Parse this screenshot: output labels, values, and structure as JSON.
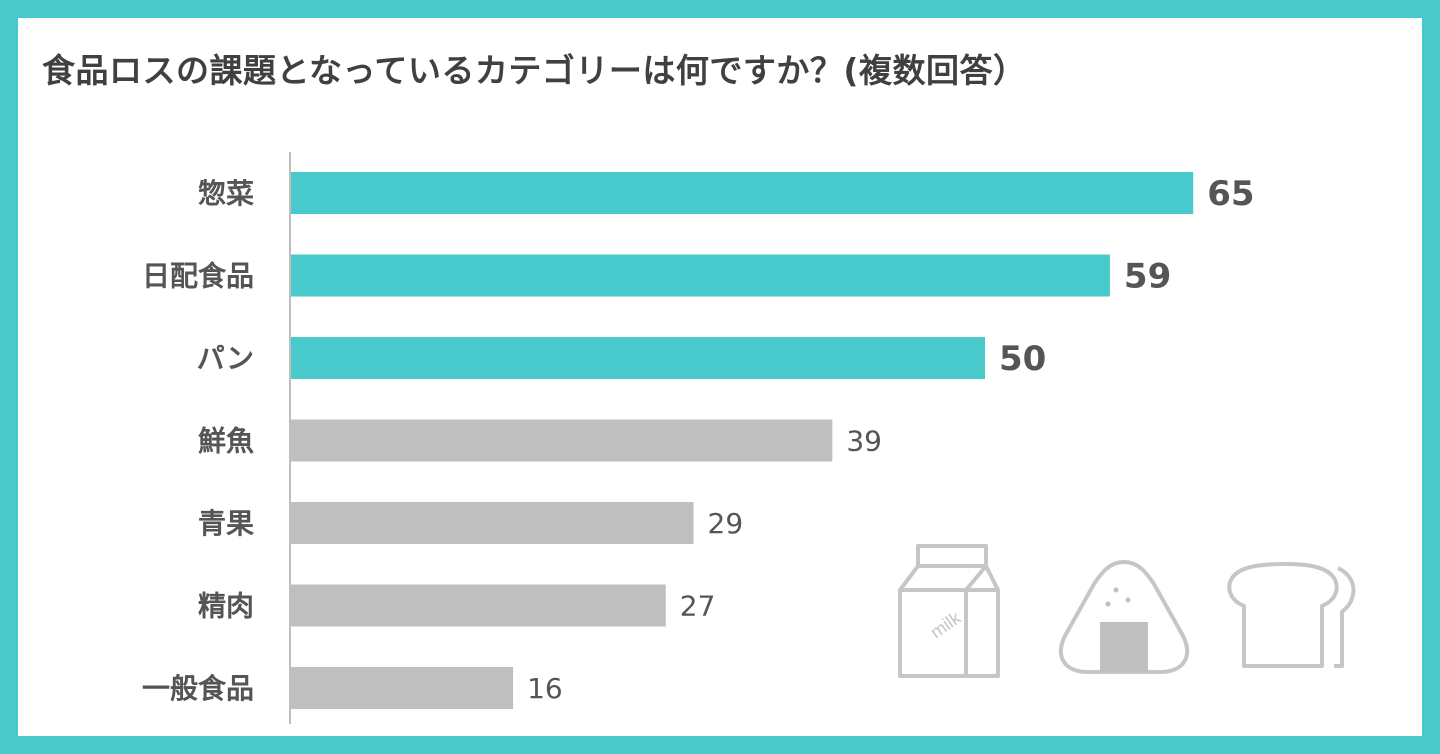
{
  "chart_data": {
    "type": "bar",
    "orientation": "horizontal",
    "title": "食品ロスの課題となっているカテゴリーは何ですか？(複数回答）",
    "categories": [
      "惣菜",
      "日配食品",
      "パン",
      "鮮魚",
      "青果",
      "精肉",
      "一般食品"
    ],
    "values": [
      65,
      59,
      50,
      39,
      29,
      27,
      16
    ],
    "highlight_count": 3,
    "colors": {
      "highlight": "#48c9cb",
      "normal": "#bfbfbf",
      "axis": "#bfbfbf"
    },
    "xlim": [
      0,
      100
    ],
    "grid": false,
    "legend": "none"
  },
  "decorations": {
    "icons": [
      "milk-carton-icon",
      "onigiri-icon",
      "bread-icon"
    ],
    "milk_label": "milk"
  }
}
